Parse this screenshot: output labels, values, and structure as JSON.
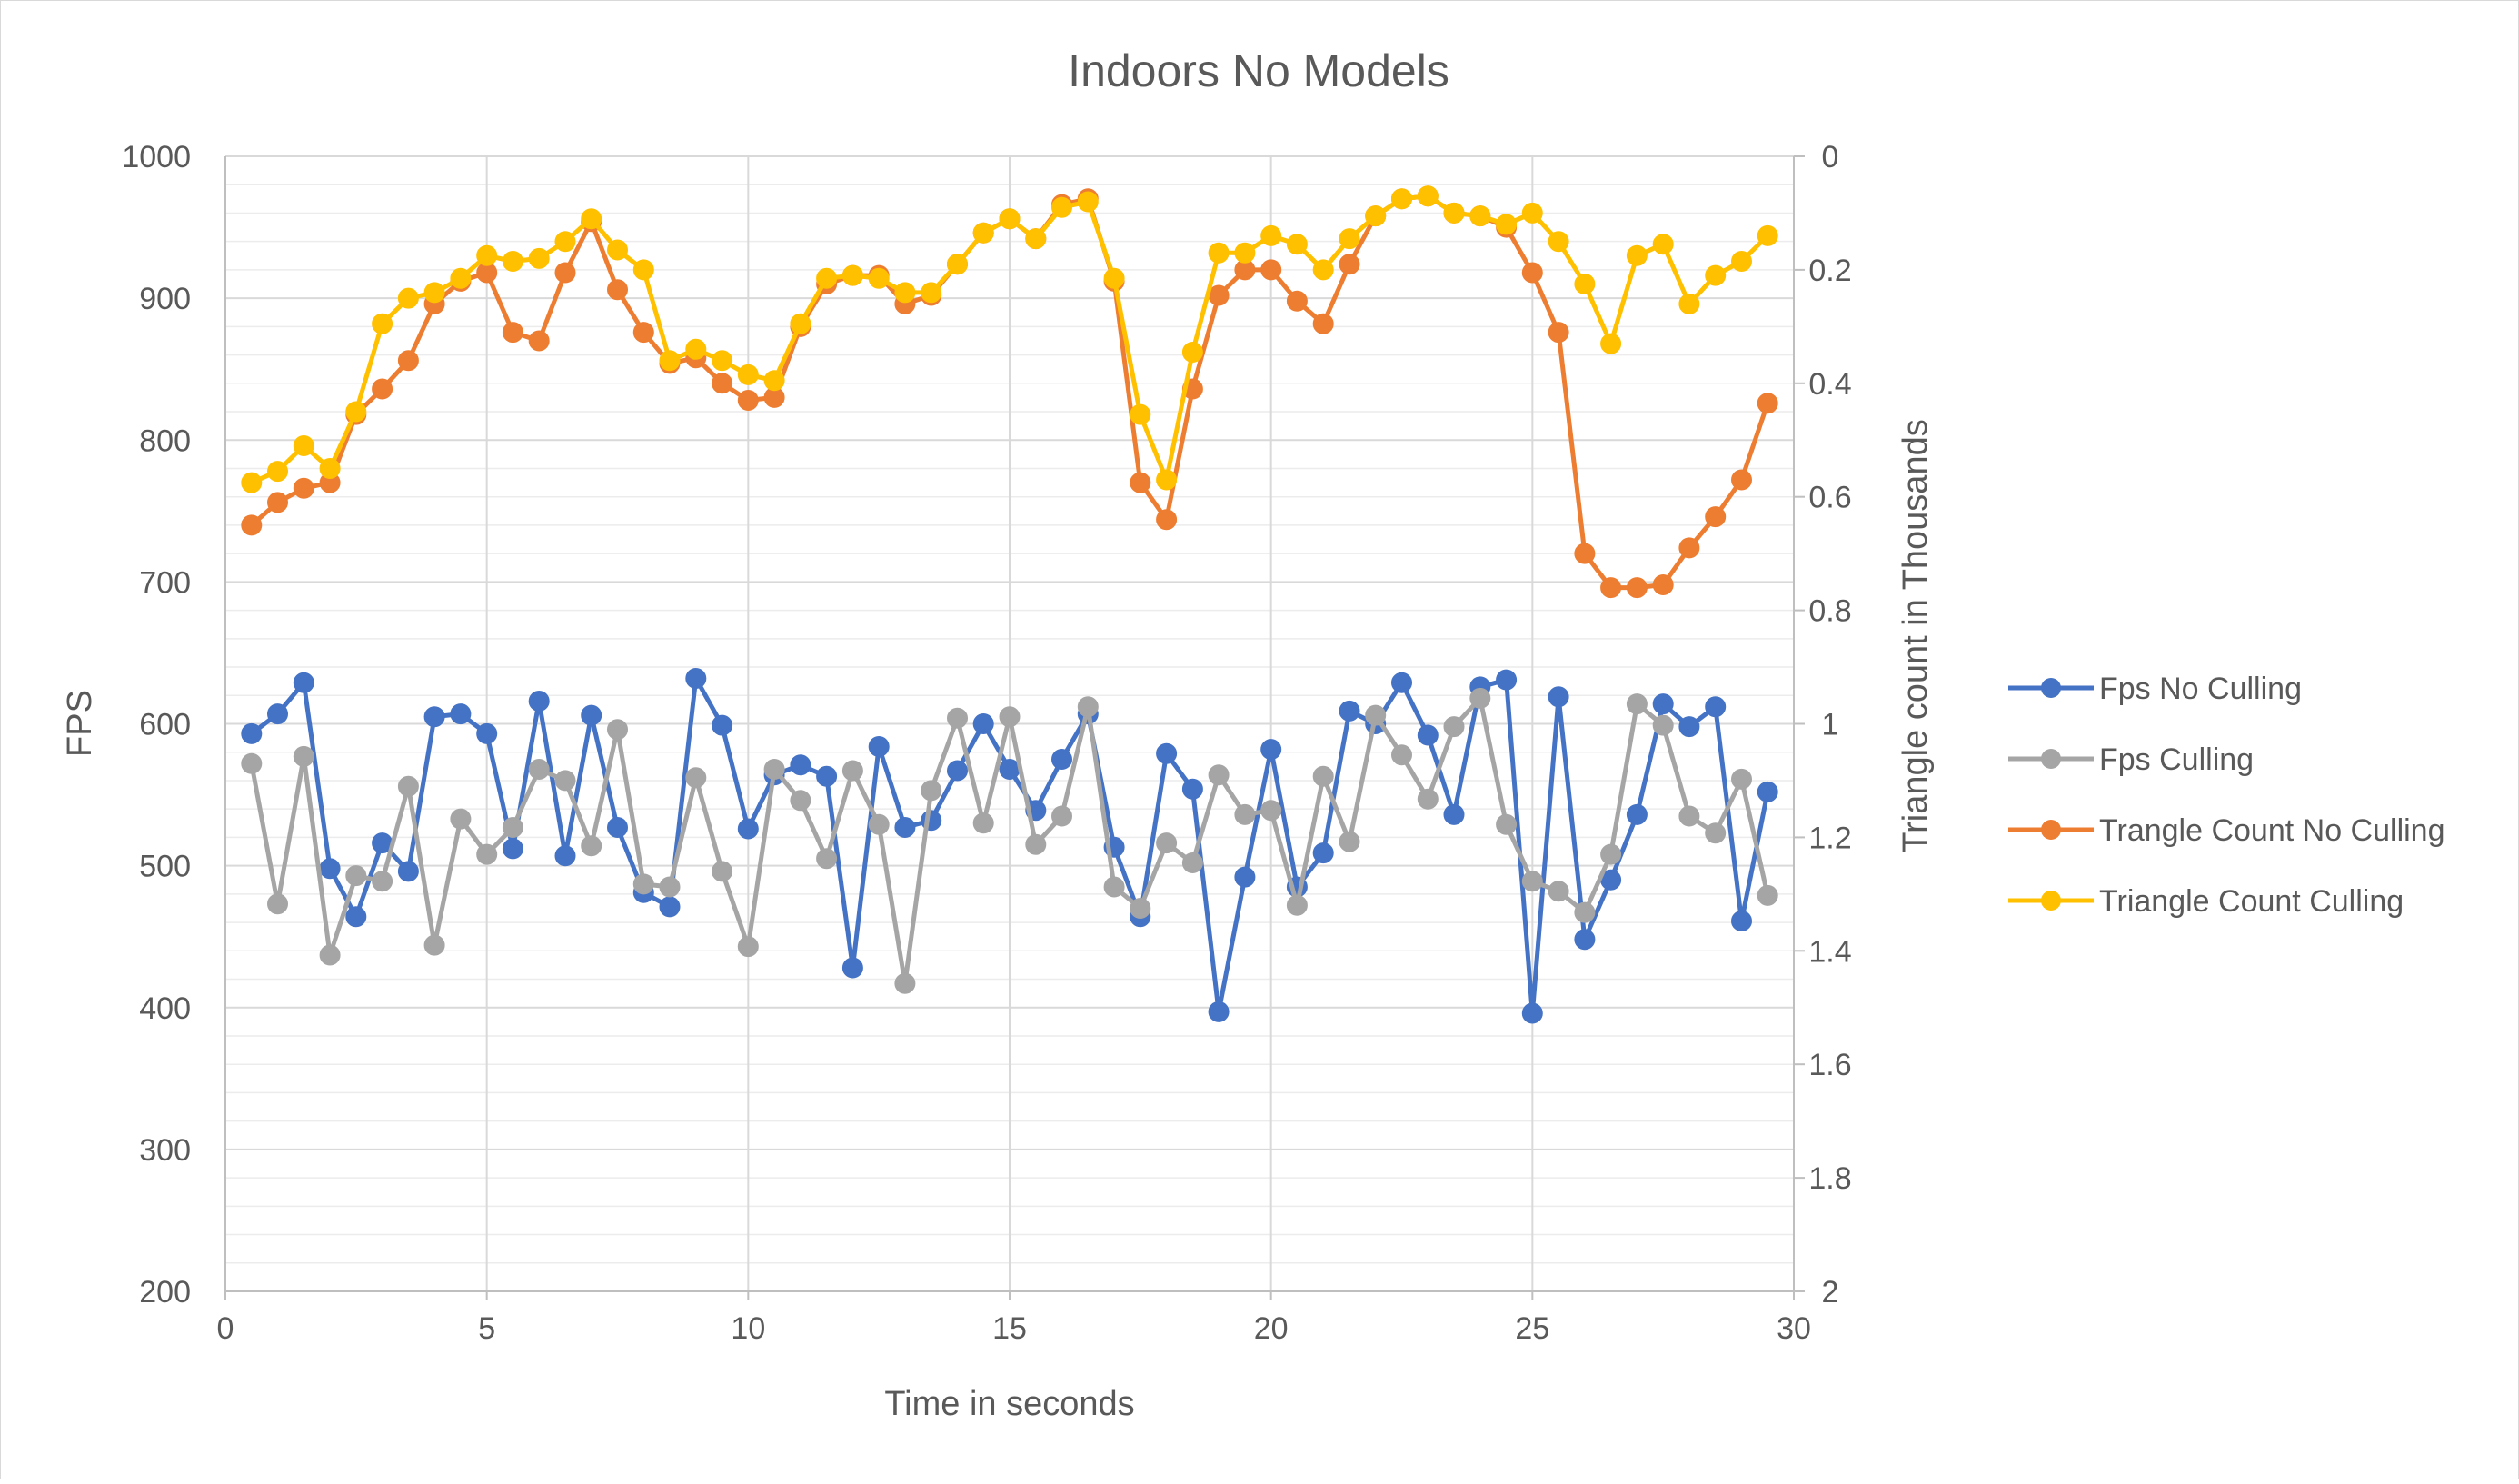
{
  "chart_data": {
    "type": "line",
    "title": "Indoors No Models",
    "xlabel": "Time in seconds",
    "ylabel": "FPS",
    "y2label": "Triangle count in Thousands",
    "xlim": [
      0,
      30
    ],
    "ylim": [
      200,
      1000
    ],
    "y2lim": [
      0,
      2
    ],
    "y2_reversed": true,
    "x_ticks": [
      "0",
      "5",
      "10",
      "15",
      "20",
      "25",
      "30"
    ],
    "y_ticks": [
      "200",
      "300",
      "400",
      "500",
      "600",
      "700",
      "800",
      "900",
      "1000"
    ],
    "y2_ticks": [
      "0",
      "0.2",
      "0.4",
      "0.6",
      "0.8",
      "1",
      "1.2",
      "1.4",
      "1.6",
      "1.8",
      "2"
    ],
    "grid": true,
    "legend_position": "right",
    "x": [
      0.5,
      1,
      1.5,
      2,
      2.5,
      3,
      3.5,
      4,
      4.5,
      5,
      5.5,
      6,
      6.5,
      7,
      7.5,
      8,
      8.5,
      9,
      9.5,
      10,
      10.5,
      11,
      11.5,
      12,
      12.5,
      13,
      13.5,
      14,
      14.5,
      15,
      15.5,
      16,
      16.5,
      17,
      17.5,
      18,
      18.5,
      19,
      19.5,
      20,
      20.5,
      21,
      21.5,
      22,
      22.5,
      23,
      23.5,
      24,
      24.5,
      25,
      25.5,
      26,
      26.5,
      27,
      27.5,
      28,
      28.5,
      29,
      29.5
    ],
    "series": [
      {
        "name": "Fps No Culling",
        "axis": "left",
        "color": "#4472C4",
        "values": [
          593,
          607,
          629,
          498,
          464,
          516,
          496,
          605,
          607,
          593,
          512,
          616,
          507,
          606,
          527,
          481,
          471,
          632,
          599,
          526,
          564,
          571,
          563,
          428,
          584,
          527,
          532,
          567,
          600,
          568,
          539,
          575,
          607,
          513,
          464,
          579,
          554,
          397,
          492,
          582,
          485,
          509,
          609,
          600,
          629,
          592,
          536,
          626,
          631,
          396,
          619,
          448,
          490,
          536,
          614,
          598,
          612,
          461,
          552
        ]
      },
      {
        "name": "Fps Culling",
        "axis": "left",
        "color": "#A5A5A5",
        "values": [
          572,
          473,
          577,
          437,
          493,
          489,
          556,
          444,
          533,
          508,
          527,
          568,
          560,
          514,
          596,
          487,
          485,
          562,
          496,
          443,
          568,
          546,
          505,
          567,
          529,
          417,
          553,
          604,
          530,
          605,
          515,
          535,
          612,
          485,
          470,
          516,
          502,
          564,
          536,
          539,
          472,
          563,
          517,
          606,
          578,
          547,
          598,
          618,
          529,
          489,
          482,
          467,
          508,
          614,
          599,
          535,
          523,
          561,
          479
        ]
      },
      {
        "name": "Trangle Count No Culling",
        "axis": "right",
        "color": "#ED7D31",
        "values": [
          0.65,
          0.61,
          0.585,
          0.575,
          0.455,
          0.41,
          0.36,
          0.26,
          0.22,
          0.205,
          0.31,
          0.325,
          0.205,
          0.115,
          0.235,
          0.31,
          0.365,
          0.355,
          0.4,
          0.43,
          0.425,
          0.3,
          0.225,
          0.21,
          0.21,
          0.26,
          0.245,
          0.19,
          0.135,
          0.11,
          0.145,
          0.085,
          0.075,
          0.22,
          0.575,
          0.64,
          0.41,
          0.245,
          0.2,
          0.2,
          0.255,
          0.295,
          0.19,
          0.105,
          0.075,
          0.07,
          0.1,
          0.105,
          0.125,
          0.205,
          0.31,
          0.7,
          0.76,
          0.76,
          0.755,
          0.69,
          0.635,
          0.57,
          0.435
        ]
      },
      {
        "name": "Triangle Count Culling",
        "axis": "right",
        "color": "#FFC000",
        "values": [
          0.575,
          0.555,
          0.51,
          0.55,
          0.45,
          0.295,
          0.25,
          0.24,
          0.215,
          0.175,
          0.185,
          0.18,
          0.15,
          0.11,
          0.165,
          0.2,
          0.36,
          0.34,
          0.36,
          0.385,
          0.395,
          0.295,
          0.215,
          0.21,
          0.215,
          0.24,
          0.24,
          0.19,
          0.135,
          0.11,
          0.145,
          0.09,
          0.08,
          0.215,
          0.455,
          0.57,
          0.345,
          0.17,
          0.17,
          0.14,
          0.155,
          0.2,
          0.145,
          0.105,
          0.075,
          0.07,
          0.1,
          0.105,
          0.12,
          0.1,
          0.15,
          0.225,
          0.33,
          0.175,
          0.155,
          0.26,
          0.21,
          0.185,
          0.14
        ]
      }
    ]
  }
}
